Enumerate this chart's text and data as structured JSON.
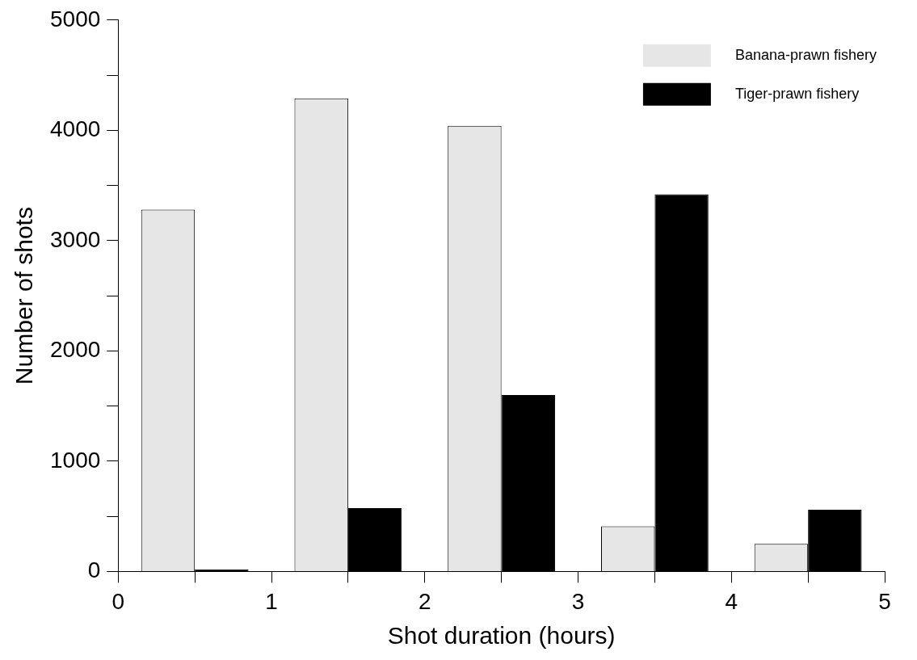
{
  "chart_data": {
    "type": "bar",
    "xlabel": "Shot duration (hours)",
    "ylabel": "Number of shots",
    "x": [
      0.5,
      1.5,
      2.5,
      3.5,
      4.5
    ],
    "series": [
      {
        "name": "Banana-prawn fishery",
        "color": "#e6e6e6",
        "values": [
          3280,
          4290,
          4040,
          410,
          250
        ]
      },
      {
        "name": "Tiger-prawn fishery",
        "color": "#000000",
        "values": [
          20,
          575,
          1600,
          3420,
          560
        ]
      }
    ],
    "xlim": [
      0,
      5
    ],
    "xticks": [
      0,
      {
        "value": 0.5,
        "label": null
      },
      1,
      {
        "value": 1.5,
        "label": null
      },
      2,
      {
        "value": 2.5,
        "label": null
      },
      3,
      {
        "value": 3.5,
        "label": null
      },
      4,
      {
        "value": 4.5,
        "label": null
      },
      5
    ],
    "ylim": [
      0,
      5000
    ],
    "yticks": [
      0,
      {
        "value": 500,
        "label": null
      },
      1000,
      {
        "value": 1500,
        "label": null
      },
      2000,
      {
        "value": 2500,
        "label": null
      },
      3000,
      {
        "value": 3500,
        "label": null
      },
      4000,
      {
        "value": 4500,
        "label": null
      },
      5000
    ],
    "grid": false,
    "legend": "top right"
  }
}
